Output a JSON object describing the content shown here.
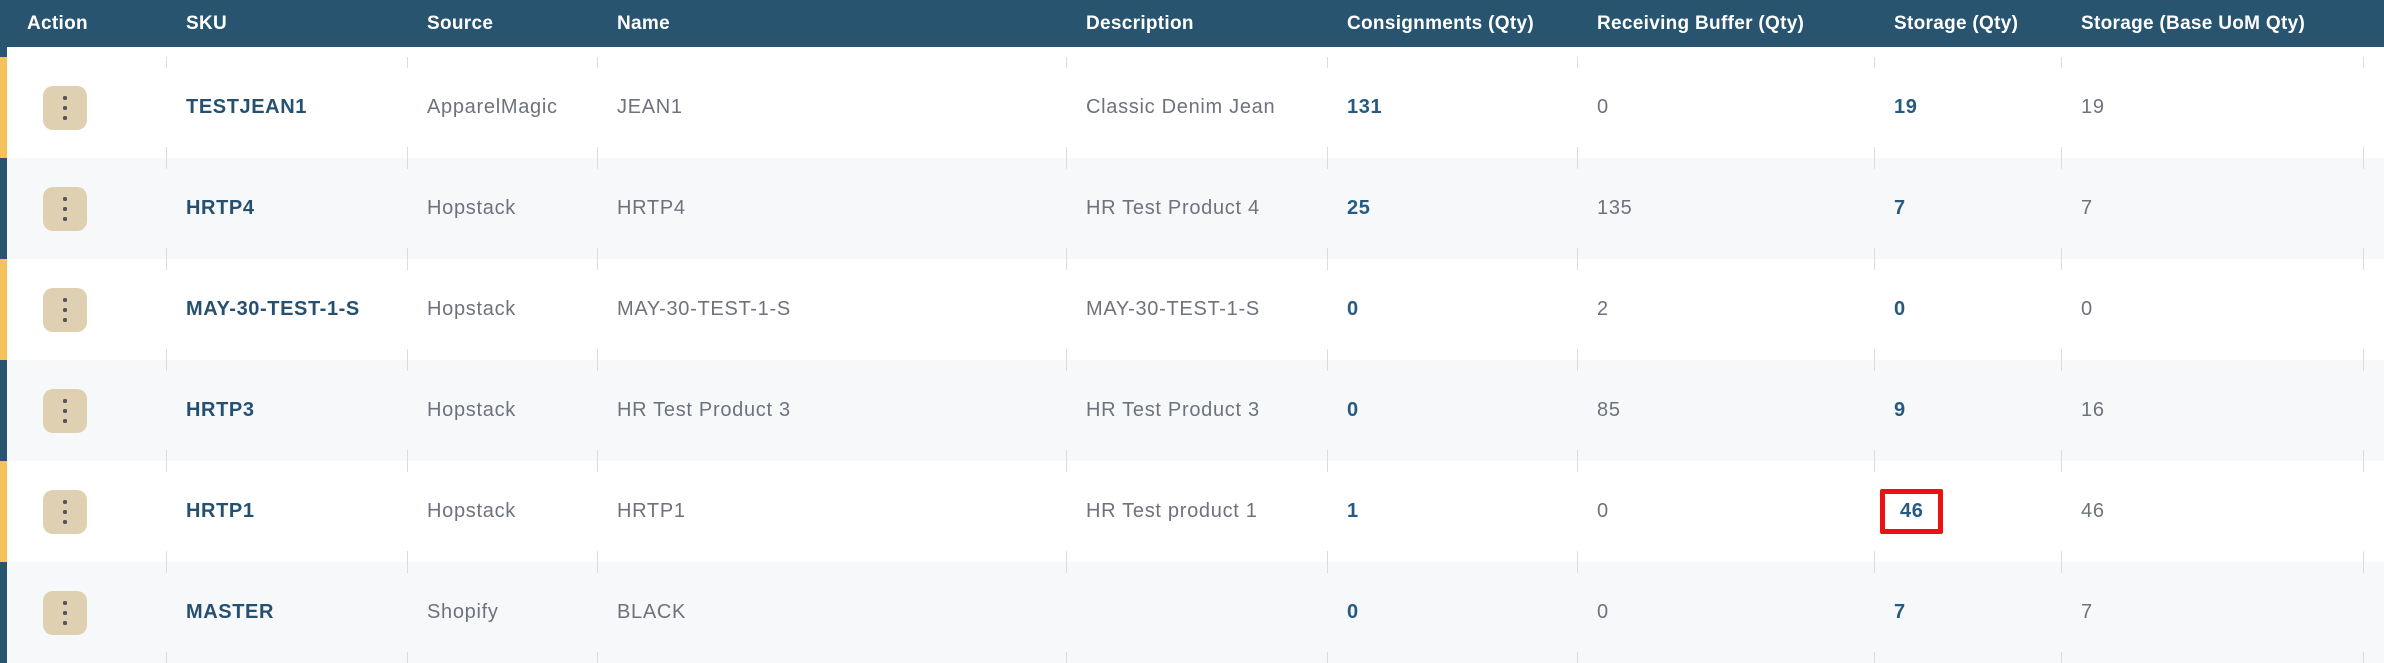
{
  "table": {
    "columns": [
      {
        "key": "action",
        "label": "Action"
      },
      {
        "key": "sku",
        "label": "SKU"
      },
      {
        "key": "source",
        "label": "Source"
      },
      {
        "key": "name",
        "label": "Name"
      },
      {
        "key": "description",
        "label": "Description"
      },
      {
        "key": "consignments",
        "label": "Consignments (Qty)"
      },
      {
        "key": "receiving_buffer",
        "label": "Receiving Buffer (Qty)"
      },
      {
        "key": "storage",
        "label": "Storage (Qty)"
      },
      {
        "key": "storage_base_uom",
        "label": "Storage (Base UoM Qty)"
      }
    ],
    "rows": [
      {
        "sku": "TESTJEAN1",
        "source": "ApparelMagic",
        "name": "JEAN1",
        "description": "Classic Denim Jean",
        "consignments": "131",
        "receiving_buffer": "0",
        "storage": "19",
        "storage_base_uom": "19",
        "stripe": "yellow",
        "highlight_storage": false
      },
      {
        "sku": "HRTP4",
        "source": "Hopstack",
        "name": "HRTP4",
        "description": "HR Test Product 4",
        "consignments": "25",
        "receiving_buffer": "135",
        "storage": "7",
        "storage_base_uom": "7",
        "stripe": "blue",
        "highlight_storage": false
      },
      {
        "sku": "MAY-30-TEST-1-S",
        "source": "Hopstack",
        "name": "MAY-30-TEST-1-S",
        "description": "MAY-30-TEST-1-S",
        "consignments": "0",
        "receiving_buffer": "2",
        "storage": "0",
        "storage_base_uom": "0",
        "stripe": "yellow",
        "highlight_storage": false
      },
      {
        "sku": "HRTP3",
        "source": "Hopstack",
        "name": "HR Test Product 3",
        "description": "HR Test Product 3",
        "consignments": "0",
        "receiving_buffer": "85",
        "storage": "9",
        "storage_base_uom": "16",
        "stripe": "blue",
        "highlight_storage": false
      },
      {
        "sku": "HRTP1",
        "source": "Hopstack",
        "name": "HRTP1",
        "description": "HR Test product 1",
        "consignments": "1",
        "receiving_buffer": "0",
        "storage": "46",
        "storage_base_uom": "46",
        "stripe": "yellow",
        "highlight_storage": true
      },
      {
        "sku": "MASTER",
        "source": "Shopify",
        "name": "BLACK",
        "description": "",
        "consignments": "0",
        "receiving_buffer": "0",
        "storage": "7",
        "storage_base_uom": "7",
        "stripe": "blue",
        "highlight_storage": false
      }
    ],
    "icons": {
      "row_action": "kebab-menu-icon"
    },
    "colors": {
      "header_bg": "#285470",
      "stripe_yellow": "#f4c258",
      "stripe_blue": "#285470",
      "row_alt_bg": "#f7f8fa",
      "muted_text": "#6d727c",
      "sku_text": "#26506f",
      "link_text": "#275a80",
      "action_button_bg": "#ded0b0",
      "tick_color": "#d9dde3",
      "highlight_box": "#ee1111"
    }
  }
}
